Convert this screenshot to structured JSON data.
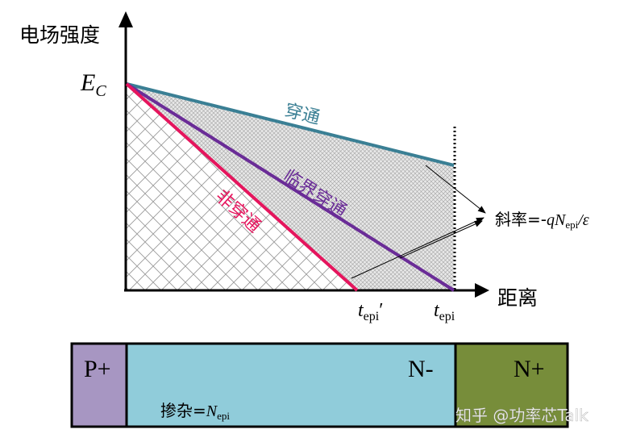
{
  "axes": {
    "y_label": "电场强度",
    "x_label": "距离",
    "y_origin_label": "E",
    "y_origin_label_sub": "C"
  },
  "lines": [
    {
      "key": "punch_through",
      "label": "穿通",
      "color": "#3a7f94"
    },
    {
      "key": "critical_punch_through",
      "label": "临界穿通",
      "color": "#6a2c97"
    },
    {
      "key": "non_punch_through",
      "label": "非穿通",
      "color": "#e5155d"
    }
  ],
  "slope": {
    "prefix": "斜率=-",
    "q": "q",
    "n": "N",
    "n_sub": "epi",
    "suffix": "/ε"
  },
  "x_ticks": {
    "tepi_prime": "t",
    "tepi_prime_sub": "epi",
    "tepi_prime_mark": "′",
    "tepi": "t",
    "tepi_sub": "epi"
  },
  "layers": {
    "p_plus": {
      "label": "P+",
      "color": "#a796c2"
    },
    "n_minus": {
      "label": "N-",
      "color": "#90ccda"
    },
    "n_plus": {
      "label": "N+",
      "color": "#778d3a"
    }
  },
  "doping": {
    "prefix": "掺杂=",
    "n": "N",
    "n_sub": "epi"
  },
  "watermark": "知乎 @功率芯Talk"
}
